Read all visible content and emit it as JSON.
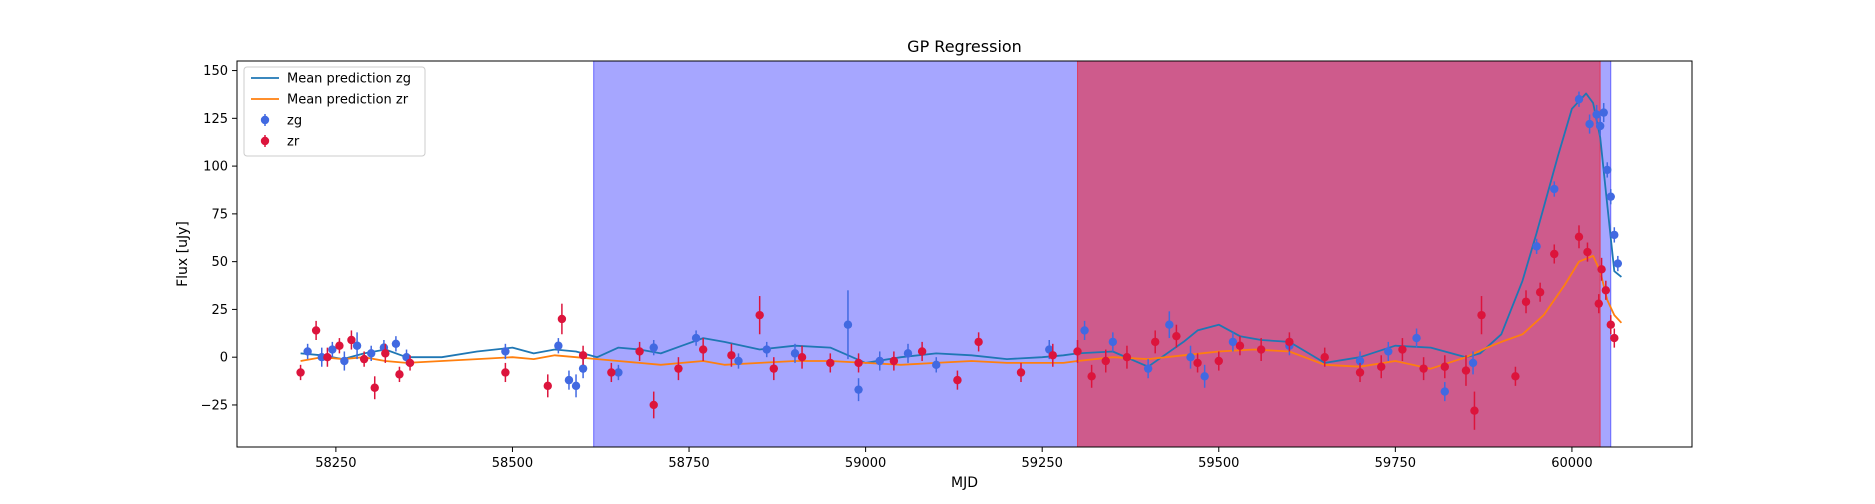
{
  "chart_data": {
    "type": "scatter",
    "title": "GP Regression",
    "xlabel": "MJD",
    "ylabel": "Flux [uJy]",
    "xlim": [
      58110,
      60170
    ],
    "ylim": [
      -47,
      155
    ],
    "xticks": [
      58250,
      58500,
      58750,
      59000,
      59250,
      59500,
      59750,
      60000
    ],
    "yticks": [
      -25,
      0,
      25,
      50,
      75,
      100,
      125,
      150
    ],
    "grid": false,
    "legend": {
      "placement": "top-left",
      "entries": [
        {
          "label": "Mean prediction zg",
          "kind": "line",
          "color": "#1f77b4"
        },
        {
          "label": "Mean prediction zr",
          "kind": "line",
          "color": "#ff7f0e"
        },
        {
          "label": "zg",
          "kind": "errorbar",
          "color": "#4169e1"
        },
        {
          "label": "zr",
          "kind": "errorbar",
          "color": "#dc143c"
        }
      ]
    },
    "shaded_regions": [
      {
        "x0": 58615,
        "x1": 60055,
        "color": "#0000ff",
        "opacity": 0.35
      },
      {
        "x0": 59300,
        "x1": 60040,
        "color": "#ff0000",
        "opacity": 0.45
      }
    ],
    "series": [
      {
        "name": "Mean prediction zg",
        "kind": "line",
        "color": "#1f77b4",
        "x": [
          58200,
          58230,
          58260,
          58290,
          58320,
          58350,
          58400,
          58450,
          58500,
          58530,
          58560,
          58590,
          58620,
          58650,
          58680,
          58710,
          58740,
          58770,
          58800,
          58850,
          58900,
          58950,
          59000,
          59050,
          59100,
          59150,
          59200,
          59250,
          59280,
          59300,
          59350,
          59400,
          59450,
          59470,
          59500,
          59530,
          59560,
          59600,
          59650,
          59700,
          59750,
          59800,
          59850,
          59870,
          59900,
          59930,
          59950,
          59980,
          60000,
          60020,
          60030,
          60040,
          60050,
          60060,
          60070
        ],
        "y": [
          2,
          1,
          -1,
          2,
          4,
          0,
          0,
          3,
          5,
          2,
          4,
          3,
          0,
          5,
          4,
          2,
          6,
          10,
          8,
          4,
          6,
          5,
          -3,
          0,
          2,
          1,
          -1,
          0,
          1,
          2,
          3,
          -5,
          8,
          14,
          17,
          11,
          9,
          8,
          -3,
          0,
          6,
          5,
          0,
          2,
          12,
          40,
          65,
          105,
          130,
          138,
          133,
          115,
          80,
          45,
          42
        ]
      },
      {
        "name": "Mean prediction zr",
        "kind": "line",
        "color": "#ff7f0e",
        "x": [
          58200,
          58230,
          58260,
          58290,
          58320,
          58350,
          58400,
          58450,
          58500,
          58530,
          58560,
          58590,
          58620,
          58650,
          58680,
          58710,
          58740,
          58770,
          58800,
          58850,
          58900,
          58950,
          59000,
          59050,
          59100,
          59150,
          59200,
          59250,
          59280,
          59300,
          59350,
          59400,
          59450,
          59500,
          59550,
          59600,
          59650,
          59700,
          59750,
          59800,
          59850,
          59880,
          59900,
          59930,
          59960,
          59990,
          60010,
          60030,
          60040,
          60050,
          60060,
          60070
        ],
        "y": [
          -2,
          0,
          -1,
          0,
          -2,
          -3,
          -2,
          -1,
          0,
          -1,
          1,
          0,
          -1,
          -2,
          -3,
          -4,
          -3,
          -2,
          -4,
          -3,
          -2,
          -2,
          -3,
          -4,
          -3,
          -2,
          -3,
          -3,
          -3,
          -2,
          0,
          -1,
          1,
          3,
          4,
          3,
          -4,
          -5,
          -2,
          -6,
          0,
          5,
          8,
          12,
          22,
          38,
          50,
          53,
          45,
          30,
          22,
          18
        ]
      },
      {
        "name": "zg",
        "kind": "errorbar",
        "color": "#4169e1",
        "x": [
          58210,
          58230,
          58245,
          58262,
          58280,
          58300,
          58318,
          58335,
          58350,
          58490,
          58565,
          58580,
          58590,
          58600,
          58650,
          58700,
          58760,
          58820,
          58860,
          58900,
          58975,
          58990,
          59020,
          59060,
          59100,
          59260,
          59310,
          59350,
          59400,
          59430,
          59460,
          59480,
          59520,
          59600,
          59700,
          59740,
          59780,
          59820,
          59860,
          59950,
          59975,
          60010,
          60025,
          60035,
          60040,
          60045,
          60050,
          60055,
          60060,
          60065
        ],
        "y": [
          3,
          0,
          4,
          -2,
          6,
          2,
          5,
          7,
          0,
          3,
          6,
          -12,
          -15,
          -6,
          -8,
          5,
          10,
          -2,
          4,
          2,
          17,
          -17,
          -2,
          2,
          -4,
          4,
          14,
          8,
          -6,
          17,
          0,
          -10,
          8,
          6,
          -2,
          3,
          10,
          -18,
          -3,
          58,
          88,
          135,
          122,
          127,
          121,
          128,
          98,
          84,
          64,
          49
        ],
        "err": [
          4,
          5,
          4,
          5,
          7,
          4,
          4,
          4,
          4,
          4,
          4,
          5,
          6,
          5,
          4,
          4,
          4,
          4,
          4,
          5,
          18,
          6,
          5,
          5,
          4,
          5,
          5,
          5,
          5,
          7,
          6,
          6,
          5,
          5,
          5,
          5,
          5,
          5,
          6,
          4,
          4,
          4,
          5,
          5,
          5,
          5,
          4,
          4,
          4,
          4
        ]
      },
      {
        "name": "zr",
        "kind": "errorbar",
        "color": "#dc143c",
        "x": [
          58200,
          58222,
          58238,
          58255,
          58272,
          58290,
          58305,
          58320,
          58340,
          58355,
          58490,
          58550,
          58570,
          58600,
          58640,
          58680,
          58700,
          58735,
          58770,
          58810,
          58850,
          58870,
          58910,
          58950,
          58990,
          59040,
          59080,
          59130,
          59160,
          59220,
          59265,
          59300,
          59320,
          59340,
          59370,
          59410,
          59440,
          59470,
          59500,
          59530,
          59560,
          59600,
          59650,
          59700,
          59730,
          59760,
          59790,
          59820,
          59850,
          59862,
          59872,
          59920,
          59935,
          59955,
          59975,
          60010,
          60022,
          60038,
          60042,
          60048,
          60055,
          60060
        ],
        "y": [
          -8,
          14,
          0,
          6,
          9,
          -1,
          -16,
          2,
          -9,
          -3,
          -8,
          -15,
          20,
          1,
          -8,
          3,
          -25,
          -6,
          4,
          1,
          22,
          -6,
          0,
          -3,
          -3,
          -2,
          3,
          -12,
          8,
          -8,
          1,
          3,
          -10,
          -2,
          0,
          8,
          11,
          -3,
          -2,
          6,
          4,
          8,
          0,
          -8,
          -5,
          4,
          -6,
          -5,
          -7,
          -28,
          22,
          -10,
          29,
          34,
          54,
          63,
          55,
          28,
          46,
          35,
          17,
          10
        ],
        "err": [
          4,
          5,
          5,
          4,
          5,
          4,
          6,
          5,
          4,
          4,
          5,
          6,
          8,
          5,
          5,
          5,
          7,
          6,
          6,
          6,
          10,
          6,
          6,
          5,
          5,
          5,
          5,
          5,
          5,
          5,
          6,
          6,
          6,
          6,
          6,
          6,
          6,
          5,
          5,
          5,
          6,
          5,
          5,
          5,
          6,
          6,
          6,
          6,
          8,
          10,
          10,
          5,
          6,
          5,
          5,
          6,
          5,
          5,
          6,
          5,
          5,
          5
        ]
      }
    ]
  }
}
